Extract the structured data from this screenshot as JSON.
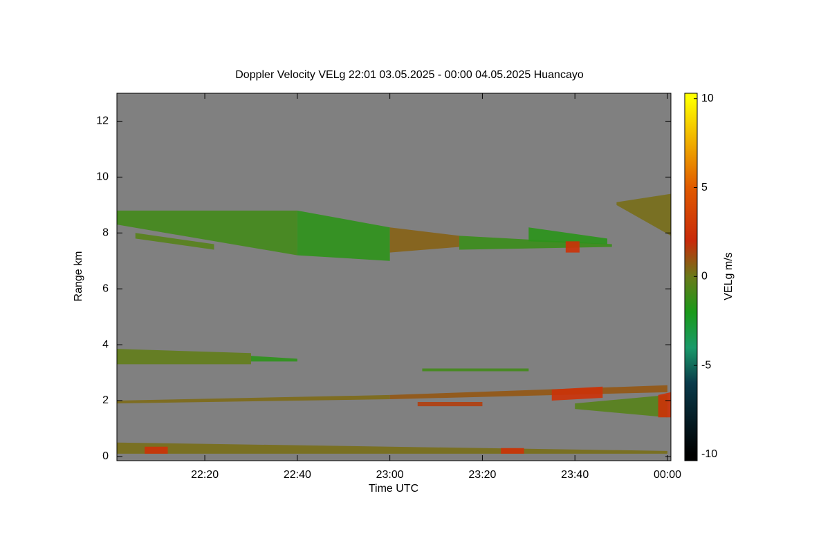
{
  "chart_data": {
    "type": "time-height",
    "title": "Doppler Velocity VELg   22:01 03.05.2025 - 00:00 04.05.2025 Huancayo",
    "xlabel": "Time UTC",
    "ylabel": "Range km",
    "colorbar_label": "VELg m/s",
    "background": "#808080",
    "xlim": [
      1,
      120.75
    ],
    "xticks": [
      {
        "value": 20,
        "label": "22:20"
      },
      {
        "value": 40,
        "label": "22:40"
      },
      {
        "value": 60,
        "label": "23:00"
      },
      {
        "value": 80,
        "label": "23:20"
      },
      {
        "value": 100,
        "label": "23:40"
      },
      {
        "value": 120,
        "label": "00:00"
      }
    ],
    "ylim": [
      -0.15,
      13
    ],
    "yticks": [
      0,
      2,
      4,
      6,
      8,
      10,
      12
    ],
    "clim": [
      -10.35,
      10.3
    ],
    "cticks": [
      10,
      5,
      0,
      -5,
      -10
    ],
    "colormap": [
      {
        "value": -10,
        "color": "#000000"
      },
      {
        "value": -6,
        "color": "#0a3a4a"
      },
      {
        "value": -4,
        "color": "#1a9a6a"
      },
      {
        "value": -2,
        "color": "#1a9a1a"
      },
      {
        "value": 0,
        "color": "#6a7a1a"
      },
      {
        "value": 2,
        "color": "#c82a0a"
      },
      {
        "value": 5,
        "color": "#e05a00"
      },
      {
        "value": 10,
        "color": "#ffff00"
      }
    ],
    "echoes": [
      {
        "t": [
          1,
          40
        ],
        "bottom": [
          8.3,
          7.2
        ],
        "top": [
          8.8,
          8.8
        ],
        "velocity": -1
      },
      {
        "t": [
          40,
          60
        ],
        "bottom": [
          7.2,
          7.0
        ],
        "top": [
          8.8,
          8.2
        ],
        "velocity": -1.5
      },
      {
        "t": [
          60,
          75
        ],
        "bottom": [
          7.3,
          7.5
        ],
        "top": [
          8.2,
          7.9
        ],
        "velocity": 0.6
      },
      {
        "t": [
          75,
          108
        ],
        "bottom": [
          7.4,
          7.5
        ],
        "top": [
          7.9,
          7.6
        ],
        "velocity": -1.2
      },
      {
        "t": [
          90,
          107
        ],
        "bottom": [
          7.7,
          7.6
        ],
        "top": [
          8.2,
          7.8
        ],
        "velocity": -1.6
      },
      {
        "t": [
          98,
          101
        ],
        "bottom": [
          7.3,
          7.3
        ],
        "top": [
          7.7,
          7.7
        ],
        "velocity": 2.5
      },
      {
        "t": [
          5,
          22
        ],
        "bottom": [
          7.8,
          7.4
        ],
        "top": [
          8.0,
          7.6
        ],
        "velocity": -0.5
      },
      {
        "t": [
          109,
          120.75
        ],
        "bottom": [
          9.0,
          7.9
        ],
        "top": [
          9.1,
          9.4
        ],
        "velocity": 0.3
      },
      {
        "t": [
          1,
          30
        ],
        "bottom": [
          3.3,
          3.3
        ],
        "top": [
          3.85,
          3.7
        ],
        "velocity": -0.2
      },
      {
        "t": [
          30,
          40
        ],
        "bottom": [
          3.4,
          3.4
        ],
        "top": [
          3.6,
          3.5
        ],
        "velocity": -1.5
      },
      {
        "t": [
          1,
          60
        ],
        "bottom": [
          1.9,
          2.05
        ],
        "top": [
          2.0,
          2.2
        ],
        "velocity": 0.4
      },
      {
        "t": [
          60,
          120
        ],
        "bottom": [
          2.05,
          2.3
        ],
        "top": [
          2.2,
          2.55
        ],
        "velocity": 0.9
      },
      {
        "t": [
          95,
          106
        ],
        "bottom": [
          2.0,
          2.1
        ],
        "top": [
          2.4,
          2.5
        ],
        "velocity": 2.5
      },
      {
        "t": [
          100,
          120
        ],
        "bottom": [
          1.7,
          1.4
        ],
        "top": [
          1.9,
          2.2
        ],
        "velocity": -0.5
      },
      {
        "t": [
          118,
          120.75
        ],
        "bottom": [
          1.4,
          1.4
        ],
        "top": [
          2.2,
          2.3
        ],
        "velocity": 2.5
      },
      {
        "t": [
          66,
          80
        ],
        "bottom": [
          1.8,
          1.8
        ],
        "top": [
          1.95,
          1.95
        ],
        "velocity": 1.5
      },
      {
        "t": [
          67,
          90
        ],
        "bottom": [
          3.05,
          3.05
        ],
        "top": [
          3.15,
          3.15
        ],
        "velocity": -1
      },
      {
        "t": [
          1,
          120
        ],
        "bottom": [
          0.1,
          0.1
        ],
        "top": [
          0.5,
          0.2
        ],
        "velocity": 0.3
      },
      {
        "t": [
          7,
          12
        ],
        "bottom": [
          0.1,
          0.1
        ],
        "top": [
          0.35,
          0.35
        ],
        "velocity": 2.5
      },
      {
        "t": [
          84,
          89
        ],
        "bottom": [
          0.1,
          0.1
        ],
        "top": [
          0.3,
          0.3
        ],
        "velocity": 2.5
      }
    ]
  }
}
